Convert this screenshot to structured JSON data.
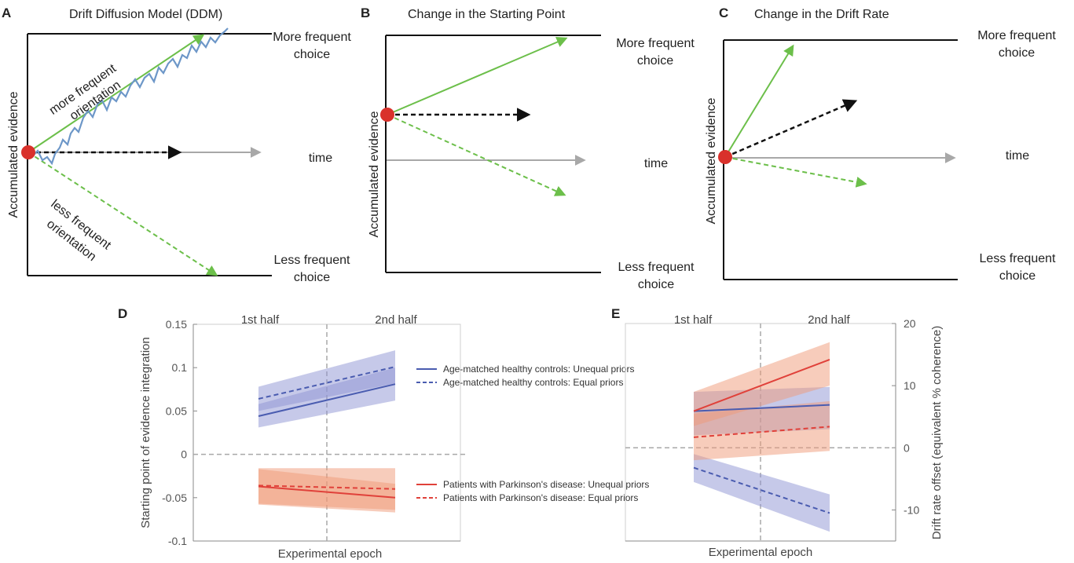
{
  "colors": {
    "green": "#6cbf4a",
    "black": "#111111",
    "gray": "#a8a8a8",
    "red_dot": "#d9312b",
    "trace": "#6d97c8",
    "blue_line": "#4a5cb0",
    "blue_fill": "#8e94d4",
    "red_line": "#e0413a",
    "red_fill": "#f09a78"
  },
  "panels": {
    "A": {
      "letter": "A",
      "title": "Drift Diffusion Model (DDM)",
      "ylabel": "Accumulated evidence",
      "upper": [
        "More frequent",
        "choice"
      ],
      "lower": [
        "Less frequent",
        "choice"
      ],
      "time": "time",
      "ann_up": [
        "more frequent",
        "orientation"
      ],
      "ann_down": [
        "less frequent",
        "orientation"
      ]
    },
    "B": {
      "letter": "B",
      "title": "Change in the Starting Point",
      "ylabel": "Accumulated evidence",
      "upper": [
        "More frequent",
        "choice"
      ],
      "lower": [
        "Less frequent",
        "choice"
      ],
      "time": "time"
    },
    "C": {
      "letter": "C",
      "title": "Change in the Drift Rate",
      "ylabel": "Accumulated evidence",
      "upper": [
        "More frequent",
        "choice"
      ],
      "lower": [
        "Less frequent",
        "choice"
      ],
      "time": "time"
    },
    "D": {
      "letter": "D"
    },
    "E": {
      "letter": "E"
    }
  },
  "chart_data": [
    {
      "type": "line",
      "panel": "D",
      "xlabel": "Experimental epoch",
      "ylabel": "Starting point of evidence integration",
      "x": [
        "1st half",
        "2nd half"
      ],
      "ylim": [
        -0.1,
        0.15
      ],
      "yticks": [
        -0.1,
        -0.05,
        0,
        0.05,
        0.1,
        0.15
      ],
      "series": [
        {
          "name": "Age-matched healthy controls: Unequal priors",
          "values": [
            0.044,
            0.081
          ],
          "lower": [
            0.031,
            0.062
          ],
          "upper": [
            0.058,
            0.1
          ],
          "color": "#4a5cb0",
          "dash": false
        },
        {
          "name": "Age-matched healthy controls: Equal priors",
          "values": [
            0.064,
            0.101
          ],
          "lower": [
            0.05,
            0.082
          ],
          "upper": [
            0.078,
            0.12
          ],
          "color": "#4a5cb0",
          "dash": true
        },
        {
          "name": "Patients with Parkinson's disease: Unequal priors",
          "values": [
            -0.037,
            -0.05
          ],
          "lower": [
            -0.058,
            -0.067
          ],
          "upper": [
            -0.017,
            -0.034
          ],
          "color": "#e0413a",
          "dash": false
        },
        {
          "name": "Patients with Parkinson's disease: Equal priors",
          "values": [
            -0.036,
            -0.04
          ],
          "lower": [
            -0.057,
            -0.064
          ],
          "upper": [
            -0.016,
            -0.016
          ],
          "color": "#e0413a",
          "dash": true
        }
      ]
    },
    {
      "type": "line",
      "panel": "E",
      "xlabel": "Experimental epoch",
      "ylabel": "Drift rate offset (equivalent % coherence)",
      "x": [
        "1st half",
        "2nd half"
      ],
      "ylim": [
        -15,
        20
      ],
      "yticks": [
        -10,
        0,
        10,
        20
      ],
      "series": [
        {
          "name": "",
          "values": [
            5.9,
            6.9
          ],
          "lower": [
            2.0,
            3.0
          ],
          "upper": [
            9.0,
            9.8
          ],
          "color": "#4a5cb0",
          "dash": false
        },
        {
          "name": "",
          "values": [
            -3.2,
            -10.5
          ],
          "lower": [
            -5.5,
            -13.5
          ],
          "upper": [
            -1.0,
            -7.5
          ],
          "color": "#4a5cb0",
          "dash": true
        },
        {
          "name": "",
          "values": [
            5.9,
            14.2
          ],
          "lower": [
            3.5,
            10.0
          ],
          "upper": [
            9.0,
            17.0
          ],
          "color": "#e0413a",
          "dash": false
        },
        {
          "name": "",
          "values": [
            1.7,
            3.4
          ],
          "lower": [
            -2.0,
            -0.5
          ],
          "upper": [
            5.5,
            7.5
          ],
          "color": "#e0413a",
          "dash": true
        }
      ]
    }
  ]
}
